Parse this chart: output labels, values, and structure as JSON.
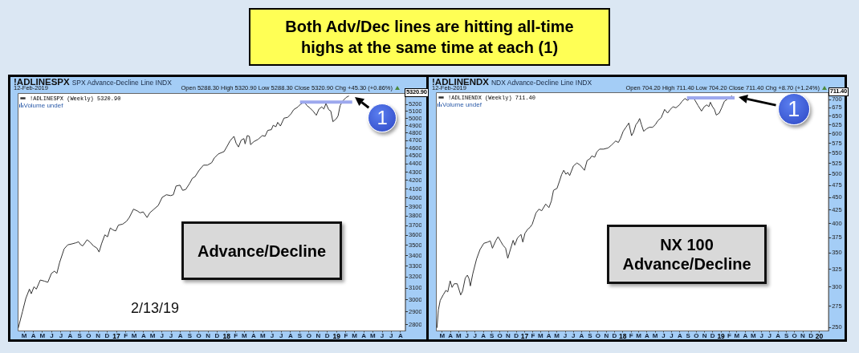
{
  "chart_data": [
    {
      "type": "other",
      "title": "Both Adv/Dec lines are hitting all-time highs at the same time at each (1)"
    },
    {
      "type": "line",
      "title": "!ADLINESPX",
      "subtitle": "SPX Advance-Decline Line INDX",
      "log": true,
      "legend": "top left",
      "xlim": [
        "2016-02-10",
        "2019-08-17"
      ],
      "ylim": [
        2750,
        5365
      ],
      "xticks": [
        {
          "value": "2016-03-01",
          "label": "M"
        },
        {
          "value": "2016-04-01",
          "label": "A"
        },
        {
          "value": "2016-05-01",
          "label": "M"
        },
        {
          "value": "2016-06-01",
          "label": "J"
        },
        {
          "value": "2016-07-01",
          "label": "J"
        },
        {
          "value": "2016-08-01",
          "label": "A"
        },
        {
          "value": "2016-09-01",
          "label": "S"
        },
        {
          "value": "2016-10-01",
          "label": "O"
        },
        {
          "value": "2016-11-01",
          "label": "N"
        },
        {
          "value": "2016-12-01",
          "label": "D"
        },
        {
          "value": "2017-01-01",
          "label": "17"
        },
        {
          "value": "2017-02-01",
          "label": "F"
        },
        {
          "value": "2017-03-01",
          "label": "M"
        },
        {
          "value": "2017-04-01",
          "label": "A"
        },
        {
          "value": "2017-05-01",
          "label": "M"
        },
        {
          "value": "2017-06-01",
          "label": "J"
        },
        {
          "value": "2017-07-01",
          "label": "J"
        },
        {
          "value": "2017-08-01",
          "label": "A"
        },
        {
          "value": "2017-09-01",
          "label": "S"
        },
        {
          "value": "2017-10-01",
          "label": "O"
        },
        {
          "value": "2017-11-01",
          "label": "N"
        },
        {
          "value": "2017-12-01",
          "label": "D"
        },
        {
          "value": "2018-01-01",
          "label": "18"
        },
        {
          "value": "2018-02-01",
          "label": "F"
        },
        {
          "value": "2018-03-01",
          "label": "M"
        },
        {
          "value": "2018-04-01",
          "label": "A"
        },
        {
          "value": "2018-05-01",
          "label": "M"
        },
        {
          "value": "2018-06-01",
          "label": "J"
        },
        {
          "value": "2018-07-01",
          "label": "J"
        },
        {
          "value": "2018-08-01",
          "label": "A"
        },
        {
          "value": "2018-09-01",
          "label": "S"
        },
        {
          "value": "2018-10-01",
          "label": "O"
        },
        {
          "value": "2018-11-01",
          "label": "N"
        },
        {
          "value": "2018-12-01",
          "label": "D"
        },
        {
          "value": "2019-01-01",
          "label": "19"
        },
        {
          "value": "2019-02-01",
          "label": "F"
        },
        {
          "value": "2019-03-01",
          "label": "M"
        },
        {
          "value": "2019-04-01",
          "label": "A"
        },
        {
          "value": "2019-05-01",
          "label": "M"
        },
        {
          "value": "2019-06-01",
          "label": "J"
        },
        {
          "value": "2019-07-01",
          "label": "J"
        },
        {
          "value": "2019-08-01",
          "label": "A"
        }
      ],
      "yticks": [
        2800,
        2900,
        3000,
        3100,
        3200,
        3300,
        3400,
        3500,
        3600,
        3700,
        3800,
        3900,
        4000,
        4100,
        4200,
        4300,
        4400,
        4500,
        4600,
        4700,
        4800,
        4900,
        5000,
        5100,
        5200
      ],
      "series": [
        {
          "name": "!ADLINESPX (Weekly) 5320.90",
          "color": "#333333",
          "x": [
            "2016-02-12",
            "2016-02-26",
            "2016-03-08",
            "2016-03-20",
            "2016-03-26",
            "2016-04-04",
            "2016-04-12",
            "2016-04-25",
            "2016-05-09",
            "2016-05-20",
            "2016-06-01",
            "2016-06-11",
            "2016-06-19",
            "2016-06-28",
            "2016-07-13",
            "2016-07-25",
            "2016-08-09",
            "2016-08-21",
            "2016-08-30",
            "2016-09-06",
            "2016-09-13",
            "2016-09-27",
            "2016-10-06",
            "2016-10-18",
            "2016-10-29",
            "2016-11-06",
            "2016-11-14",
            "2016-11-25",
            "2016-12-04",
            "2016-12-13",
            "2016-12-22",
            "2016-12-31",
            "2017-01-09",
            "2017-01-23",
            "2017-02-05",
            "2017-02-14",
            "2017-02-28",
            "2017-03-13",
            "2017-03-22",
            "2017-04-01",
            "2017-04-14",
            "2017-04-23",
            "2017-05-07",
            "2017-05-21",
            "2017-06-03",
            "2017-06-17",
            "2017-07-01",
            "2017-07-10",
            "2017-07-19",
            "2017-08-01",
            "2017-08-10",
            "2017-08-20",
            "2017-09-02",
            "2017-09-11",
            "2017-09-20",
            "2017-10-04",
            "2017-10-18",
            "2017-10-31",
            "2017-11-14",
            "2017-11-23",
            "2017-12-06",
            "2017-12-25",
            "2018-01-03",
            "2018-01-14",
            "2018-01-27",
            "2018-02-03",
            "2018-02-11",
            "2018-02-20",
            "2018-03-01",
            "2018-03-05",
            "2018-03-12",
            "2018-03-19",
            "2018-03-23",
            "2018-04-03",
            "2018-04-17",
            "2018-05-01",
            "2018-05-10",
            "2018-05-19",
            "2018-05-31",
            "2018-06-06",
            "2018-06-15",
            "2018-06-21",
            "2018-06-30",
            "2018-07-12",
            "2018-07-24",
            "2018-08-04",
            "2018-08-13",
            "2018-08-27",
            "2018-09-05",
            "2018-09-17",
            "2018-09-26",
            "2018-10-07",
            "2018-10-16",
            "2018-10-27",
            "2018-11-05",
            "2018-11-14",
            "2018-11-21",
            "2018-11-28",
            "2018-12-07",
            "2018-12-14",
            "2018-12-21",
            "2019-01-01",
            "2019-01-07",
            "2019-01-14",
            "2019-01-23",
            "2019-02-03",
            "2019-02-12"
          ],
          "values": [
            2770,
            2900,
            3010,
            3090,
            3050,
            3110,
            3090,
            3170,
            3160,
            3150,
            3230,
            3250,
            3230,
            3330,
            3460,
            3500,
            3510,
            3520,
            3530,
            3500,
            3490,
            3550,
            3530,
            3490,
            3470,
            3430,
            3510,
            3600,
            3580,
            3670,
            3650,
            3640,
            3700,
            3710,
            3740,
            3780,
            3870,
            3850,
            3830,
            3840,
            3780,
            3830,
            3870,
            3910,
            4000,
            4030,
            4020,
            4030,
            4130,
            4140,
            4080,
            4090,
            4160,
            4220,
            4240,
            4320,
            4380,
            4380,
            4410,
            4470,
            4520,
            4550,
            4610,
            4690,
            4750,
            4660,
            4610,
            4700,
            4720,
            4650,
            4760,
            4750,
            4640,
            4680,
            4710,
            4760,
            4750,
            4830,
            4840,
            4900,
            4880,
            4940,
            4890,
            5000,
            5010,
            5060,
            5120,
            5160,
            5200,
            5230,
            5180,
            5140,
            5100,
            5040,
            5130,
            5160,
            5130,
            5210,
            5120,
            5100,
            4950,
            4990,
            5030,
            5180,
            5250,
            5300,
            5320.9
          ]
        },
        {
          "color": "#9da8ee",
          "x": [
            "2018-09-03",
            "2019-02-23"
          ],
          "values": [
            5230,
            5230
          ]
        }
      ],
      "annotations": [
        "12-Feb-2019",
        "Open 5288.30 High 5320.90 Low 5288.30 Close 5320.90 Chg +45.30 (+0.86%)",
        "Volume undef",
        "5320.90",
        {
          "text": "1",
          "x": "2019-02-12",
          "y": 5320.9
        },
        "Advance/Decline",
        "2/13/19"
      ]
    },
    {
      "type": "line",
      "title": "!ADLINENDX",
      "subtitle": "NDX Advance-Decline Line INDX",
      "log": true,
      "legend": "top left",
      "xlim": [
        "2016-02-08",
        "2020-02-05"
      ],
      "ylim": [
        246,
        723
      ],
      "xticks": [
        {
          "value": "2016-03-01",
          "label": "M"
        },
        {
          "value": "2016-04-01",
          "label": "A"
        },
        {
          "value": "2016-05-01",
          "label": "M"
        },
        {
          "value": "2016-06-01",
          "label": "J"
        },
        {
          "value": "2016-07-01",
          "label": "J"
        },
        {
          "value": "2016-08-01",
          "label": "A"
        },
        {
          "value": "2016-09-01",
          "label": "S"
        },
        {
          "value": "2016-10-01",
          "label": "O"
        },
        {
          "value": "2016-11-01",
          "label": "N"
        },
        {
          "value": "2016-12-01",
          "label": "D"
        },
        {
          "value": "2017-01-01",
          "label": "17"
        },
        {
          "value": "2017-02-01",
          "label": "F"
        },
        {
          "value": "2017-03-01",
          "label": "M"
        },
        {
          "value": "2017-04-01",
          "label": "A"
        },
        {
          "value": "2017-05-01",
          "label": "M"
        },
        {
          "value": "2017-06-01",
          "label": "J"
        },
        {
          "value": "2017-07-01",
          "label": "J"
        },
        {
          "value": "2017-08-01",
          "label": "A"
        },
        {
          "value": "2017-09-01",
          "label": "S"
        },
        {
          "value": "2017-10-01",
          "label": "O"
        },
        {
          "value": "2017-11-01",
          "label": "N"
        },
        {
          "value": "2017-12-01",
          "label": "D"
        },
        {
          "value": "2018-01-01",
          "label": "18"
        },
        {
          "value": "2018-02-01",
          "label": "F"
        },
        {
          "value": "2018-03-01",
          "label": "M"
        },
        {
          "value": "2018-04-01",
          "label": "A"
        },
        {
          "value": "2018-05-01",
          "label": "M"
        },
        {
          "value": "2018-06-01",
          "label": "J"
        },
        {
          "value": "2018-07-01",
          "label": "J"
        },
        {
          "value": "2018-08-01",
          "label": "A"
        },
        {
          "value": "2018-09-01",
          "label": "S"
        },
        {
          "value": "2018-10-01",
          "label": "O"
        },
        {
          "value": "2018-11-01",
          "label": "N"
        },
        {
          "value": "2018-12-01",
          "label": "D"
        },
        {
          "value": "2019-01-01",
          "label": "19"
        },
        {
          "value": "2019-02-01",
          "label": "F"
        },
        {
          "value": "2019-03-01",
          "label": "M"
        },
        {
          "value": "2019-04-01",
          "label": "A"
        },
        {
          "value": "2019-05-01",
          "label": "M"
        },
        {
          "value": "2019-06-01",
          "label": "J"
        },
        {
          "value": "2019-07-01",
          "label": "J"
        },
        {
          "value": "2019-08-01",
          "label": "A"
        },
        {
          "value": "2019-09-01",
          "label": "S"
        },
        {
          "value": "2019-10-01",
          "label": "O"
        },
        {
          "value": "2019-11-01",
          "label": "N"
        },
        {
          "value": "2019-12-01",
          "label": "D"
        },
        {
          "value": "2020-01-01",
          "label": "20"
        }
      ],
      "yticks": [
        250,
        275,
        300,
        325,
        350,
        375,
        400,
        425,
        450,
        475,
        500,
        525,
        550,
        575,
        600,
        625,
        650,
        675,
        700
      ],
      "series": [
        {
          "name": "!ADLINENDX (Weekly) 711.40",
          "color": "#333333",
          "x": [
            "2016-02-12",
            "2016-02-17",
            "2016-02-24",
            "2016-03-06",
            "2016-03-16",
            "2016-03-23",
            "2016-04-01",
            "2016-04-08",
            "2016-04-16",
            "2016-04-27",
            "2016-05-04",
            "2016-05-10",
            "2016-05-17",
            "2016-05-27",
            "2016-06-04",
            "2016-06-10",
            "2016-06-15",
            "2016-06-24",
            "2016-07-08",
            "2016-07-21",
            "2016-08-04",
            "2016-08-18",
            "2016-08-28",
            "2016-09-05",
            "2016-09-18",
            "2016-09-26",
            "2016-10-05",
            "2016-10-14",
            "2016-10-24",
            "2016-11-01",
            "2016-11-08",
            "2016-11-21",
            "2016-11-27",
            "2016-12-07",
            "2016-12-14",
            "2016-12-20",
            "2016-12-27",
            "2017-01-04",
            "2017-01-14",
            "2017-01-22",
            "2017-01-31",
            "2017-02-06",
            "2017-02-14",
            "2017-02-25",
            "2017-03-07",
            "2017-03-22",
            "2017-04-03",
            "2017-04-12",
            "2017-04-20",
            "2017-05-03",
            "2017-05-13",
            "2017-05-20",
            "2017-05-28",
            "2017-06-05",
            "2017-06-12",
            "2017-06-19",
            "2017-07-03",
            "2017-07-16",
            "2017-07-28",
            "2017-08-13",
            "2017-08-23",
            "2017-09-02",
            "2017-09-09",
            "2017-09-20",
            "2017-09-28",
            "2017-10-08",
            "2017-10-23",
            "2017-11-09",
            "2017-11-21",
            "2017-12-07",
            "2017-12-17",
            "2017-12-25",
            "2018-01-04",
            "2018-01-14",
            "2018-01-25",
            "2018-02-04",
            "2018-02-11",
            "2018-02-20",
            "2018-02-28",
            "2018-03-06",
            "2018-03-13",
            "2018-03-21",
            "2018-04-01",
            "2018-04-11",
            "2018-04-23",
            "2018-05-03",
            "2018-05-13",
            "2018-05-25",
            "2018-06-07",
            "2018-06-18",
            "2018-06-28",
            "2018-07-08",
            "2018-07-19",
            "2018-08-01",
            "2018-08-11",
            "2018-08-21",
            "2018-08-31",
            "2018-09-10",
            "2018-09-21",
            "2018-09-28",
            "2018-10-09",
            "2018-10-22",
            "2018-11-01",
            "2018-11-11",
            "2018-11-18",
            "2018-11-24",
            "2018-12-02",
            "2018-12-09",
            "2018-12-16",
            "2018-12-27",
            "2019-01-05",
            "2019-01-15",
            "2019-01-25",
            "2019-02-03",
            "2019-02-12"
          ],
          "values": [
            249,
            270,
            282,
            289,
            295,
            293,
            308,
            299,
            304,
            304,
            296,
            289,
            294,
            312,
            316,
            311,
            301,
            318,
            340,
            355,
            365,
            367,
            369,
            357,
            370,
            376,
            369,
            362,
            357,
            341,
            351,
            370,
            362,
            374,
            377,
            380,
            367,
            382,
            389,
            392,
            398,
            407,
            419,
            426,
            423,
            436,
            429,
            442,
            464,
            468,
            485,
            498,
            508,
            499,
            503,
            496,
            518,
            525,
            520,
            508,
            531,
            535,
            542,
            539,
            552,
            559,
            559,
            562,
            569,
            580,
            576,
            587,
            606,
            617,
            629,
            594,
            603,
            624,
            632,
            642,
            624,
            606,
            613,
            617,
            617,
            624,
            636,
            644,
            669,
            658,
            669,
            677,
            674,
            683,
            694,
            703,
            697,
            703,
            705,
            697,
            681,
            664,
            677,
            683,
            677,
            691,
            677,
            669,
            652,
            658,
            674,
            694,
            700,
            706,
            711.4
          ]
        },
        {
          "color": "#9da8ee",
          "x": [
            "2018-08-29",
            "2019-02-22"
          ],
          "values": [
            705,
            705
          ]
        }
      ],
      "annotations": [
        "12-Feb-2019",
        "Open 704.20 High 711.40 Low 704.20 Close 711.40 Chg +8.70 (+1.24%)",
        "Volume undef",
        "711.40",
        {
          "text": "1",
          "x": "2019-02-12",
          "y": 711.4
        },
        "NX 100 Advance/Decline"
      ]
    }
  ]
}
